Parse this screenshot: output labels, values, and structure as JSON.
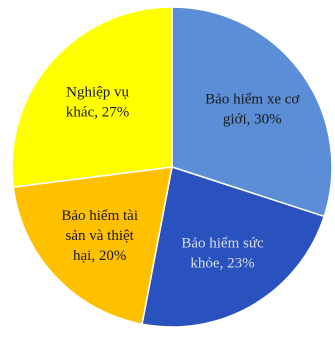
{
  "chart_data": {
    "type": "pie",
    "title": "",
    "start_angle_deg": 0,
    "direction": "clockwise",
    "legend": "none",
    "slices": [
      {
        "name": "Bảo hiểm xe cơ giới",
        "value": 30,
        "color": "#5B8ED6",
        "label_lines": [
          "Bảo hiểm xe cơ",
          "giới, 30%"
        ],
        "label_color": "#1a1a1a"
      },
      {
        "name": "Bảo hiểm sức khỏe",
        "value": 23,
        "color": "#2A52BE",
        "label_lines": [
          "Bảo hiểm sức",
          "khỏe, 23%"
        ],
        "label_color": "#d8dde8"
      },
      {
        "name": "Bảo hiểm tài sản và thiệt hại",
        "value": 20,
        "color": "#FFC000",
        "label_lines": [
          "Bảo hiểm tài",
          "sản và thiệt",
          "hại, 20%"
        ],
        "label_color": "#1a1a1a"
      },
      {
        "name": "Nghiệp vụ khác",
        "value": 27,
        "color": "#FFFF00",
        "label_lines": [
          "Nghiệp vụ",
          "khác, 27%"
        ],
        "label_color": "#1a1a1a"
      }
    ]
  }
}
